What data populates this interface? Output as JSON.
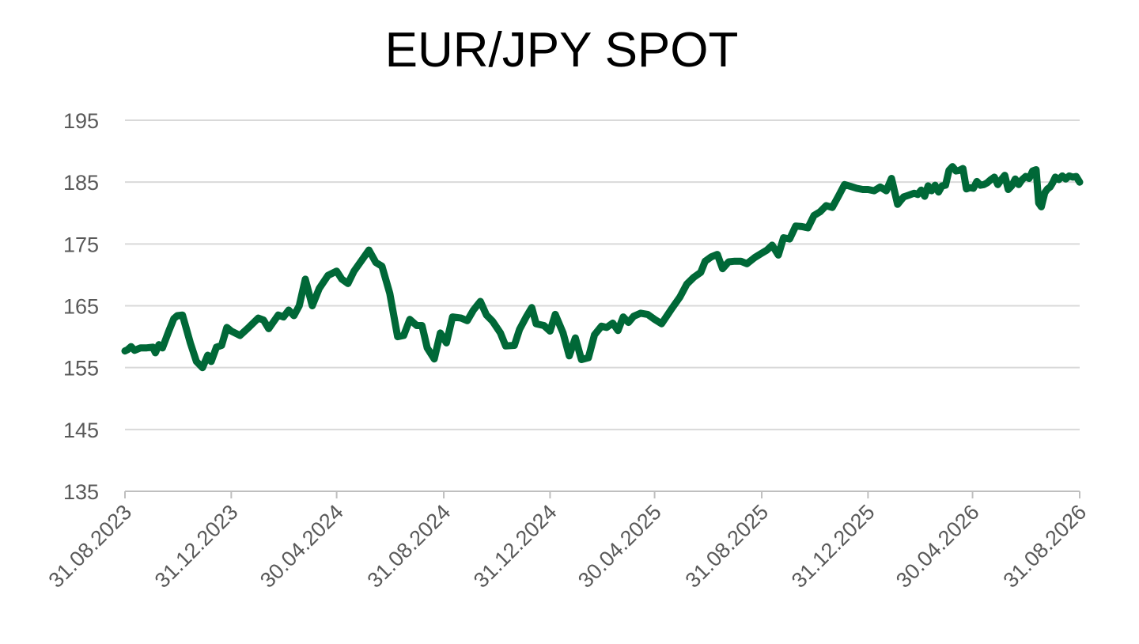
{
  "chart_data": {
    "type": "line",
    "title": "EUR/JPY SPOT",
    "xlabel": "",
    "ylabel": "",
    "ylim": [
      135,
      195
    ],
    "yticks": [
      "135",
      "145",
      "155",
      "165",
      "175",
      "185",
      "195"
    ],
    "xticks": [
      "31.08.2023",
      "31.12.2023",
      "30.04.2024",
      "31.08.2024",
      "31.12.2024",
      "30.04.2025",
      "31.08.2025",
      "31.12.2025",
      "30.04.2026",
      "31.08.2026"
    ],
    "grid": true,
    "legend": "none",
    "line_color": "#006837",
    "series": [
      {
        "points": [
          [
            "31.08.2023",
            157.7
          ],
          [
            "03.09.2023",
            157.9
          ],
          [
            "07.09.2023",
            158.4
          ],
          [
            "11.09.2023",
            157.8
          ],
          [
            "18.09.2023",
            158.2
          ],
          [
            "25.09.2023",
            158.2
          ],
          [
            "02.10.2023",
            158.3
          ],
          [
            "05.10.2023",
            157.4
          ],
          [
            "09.10.2023",
            158.7
          ],
          [
            "13.10.2023",
            158.2
          ],
          [
            "20.10.2023",
            160.8
          ],
          [
            "26.10.2023",
            162.9
          ],
          [
            "30.10.2023",
            163.4
          ],
          [
            "05.11.2023",
            163.5
          ],
          [
            "14.11.2023",
            159.0
          ],
          [
            "21.11.2023",
            156.0
          ],
          [
            "28.11.2023",
            155.0
          ],
          [
            "04.12.2023",
            157.0
          ],
          [
            "08.12.2023",
            156.0
          ],
          [
            "14.12.2023",
            158.3
          ],
          [
            "20.12.2023",
            158.6
          ],
          [
            "26.12.2023",
            161.5
          ],
          [
            "31.12.2023",
            160.9
          ],
          [
            "10.01.2024",
            160.2
          ],
          [
            "20.01.2024",
            161.5
          ],
          [
            "31.01.2024",
            163.0
          ],
          [
            "06.02.2024",
            162.7
          ],
          [
            "12.02.2024",
            161.3
          ],
          [
            "23.02.2024",
            163.5
          ],
          [
            "29.02.2024",
            163.2
          ],
          [
            "06.03.2024",
            164.3
          ],
          [
            "12.03.2024",
            163.4
          ],
          [
            "18.03.2024",
            165.0
          ],
          [
            "25.03.2024",
            169.3
          ],
          [
            "02.04.2024",
            165.0
          ],
          [
            "10.04.2024",
            167.8
          ],
          [
            "20.04.2024",
            169.9
          ],
          [
            "30.04.2024",
            170.6
          ],
          [
            "06.05.2024",
            169.3
          ],
          [
            "13.05.2024",
            168.6
          ],
          [
            "20.05.2024",
            170.6
          ],
          [
            "31.05.2024",
            172.8
          ],
          [
            "06.06.2024",
            174.0
          ],
          [
            "14.06.2024",
            172.0
          ],
          [
            "21.06.2024",
            171.4
          ],
          [
            "30.06.2024",
            167.0
          ],
          [
            "09.07.2024",
            160.0
          ],
          [
            "16.07.2024",
            160.2
          ],
          [
            "23.07.2024",
            162.8
          ],
          [
            "31.07.2024",
            161.8
          ],
          [
            "06.08.2024",
            161.8
          ],
          [
            "12.08.2024",
            158.2
          ],
          [
            "20.08.2024",
            156.4
          ],
          [
            "27.08.2024",
            160.6
          ],
          [
            "03.09.2024",
            159.0
          ],
          [
            "10.09.2024",
            163.2
          ],
          [
            "20.09.2024",
            163.0
          ],
          [
            "27.09.2024",
            162.6
          ],
          [
            "04.10.2024",
            164.3
          ],
          [
            "12.10.2024",
            165.7
          ],
          [
            "19.10.2024",
            163.5
          ],
          [
            "26.10.2024",
            162.5
          ],
          [
            "04.11.2024",
            160.6
          ],
          [
            "10.11.2024",
            158.5
          ],
          [
            "20.11.2024",
            158.6
          ],
          [
            "26.11.2024",
            161.2
          ],
          [
            "04.12.2024",
            163.3
          ],
          [
            "10.12.2024",
            164.7
          ],
          [
            "15.12.2024",
            162.1
          ],
          [
            "24.12.2024",
            161.8
          ],
          [
            "31.12.2024",
            160.9
          ],
          [
            "06.01.2025",
            163.6
          ],
          [
            "15.01.2025",
            160.6
          ],
          [
            "22.01.2025",
            156.9
          ],
          [
            "29.01.2025",
            159.8
          ],
          [
            "05.02.2025",
            156.3
          ],
          [
            "13.02.2025",
            156.6
          ],
          [
            "20.02.2025",
            160.3
          ],
          [
            "28.02.2025",
            161.7
          ],
          [
            "06.03.2025",
            161.5
          ],
          [
            "13.03.2025",
            162.2
          ],
          [
            "19.03.2025",
            161.0
          ],
          [
            "25.03.2025",
            163.2
          ],
          [
            "31.03.2025",
            162.3
          ],
          [
            "06.04.2025",
            163.3
          ],
          [
            "14.04.2025",
            163.8
          ],
          [
            "22.04.2025",
            163.6
          ],
          [
            "30.04.2025",
            162.8
          ],
          [
            "08.05.2025",
            162.1
          ],
          [
            "19.05.2025",
            164.4
          ],
          [
            "29.05.2025",
            166.4
          ],
          [
            "06.06.2025",
            168.5
          ],
          [
            "14.06.2025",
            169.6
          ],
          [
            "22.06.2025",
            170.4
          ],
          [
            "27.06.2025",
            172.2
          ],
          [
            "04.07.2025",
            172.9
          ],
          [
            "11.07.2025",
            173.3
          ],
          [
            "17.07.2025",
            171.0
          ],
          [
            "24.07.2025",
            172.1
          ],
          [
            "31.07.2025",
            172.2
          ],
          [
            "07.08.2025",
            172.2
          ],
          [
            "14.08.2025",
            171.8
          ],
          [
            "23.08.2025",
            172.8
          ],
          [
            "31.08.2025",
            173.5
          ],
          [
            "06.09.2025",
            174.0
          ],
          [
            "12.09.2025",
            174.8
          ],
          [
            "19.09.2025",
            173.2
          ],
          [
            "25.09.2025",
            176.0
          ],
          [
            "02.10.2025",
            175.8
          ],
          [
            "09.10.2025",
            177.9
          ],
          [
            "16.10.2025",
            177.8
          ],
          [
            "23.10.2025",
            177.6
          ],
          [
            "30.10.2025",
            179.6
          ],
          [
            "06.11.2025",
            180.2
          ],
          [
            "13.11.2025",
            181.2
          ],
          [
            "20.11.2025",
            180.9
          ],
          [
            "27.11.2025",
            182.7
          ],
          [
            "04.12.2025",
            184.6
          ],
          [
            "11.12.2025",
            184.3
          ],
          [
            "18.12.2025",
            184.0
          ],
          [
            "25.12.2025",
            183.8
          ],
          [
            "31.12.2025",
            183.8
          ],
          [
            "07.01.2026",
            183.6
          ],
          [
            "14.01.2026",
            184.2
          ],
          [
            "21.01.2026",
            183.6
          ],
          [
            "27.01.2026",
            185.6
          ],
          [
            "03.02.2026",
            181.4
          ],
          [
            "10.02.2026",
            182.6
          ],
          [
            "16.02.2026",
            182.9
          ],
          [
            "22.02.2026",
            183.2
          ],
          [
            "26.02.2026",
            183.0
          ],
          [
            "02.03.2026",
            183.7
          ],
          [
            "06.03.2026",
            182.7
          ],
          [
            "10.03.2026",
            184.4
          ],
          [
            "14.03.2026",
            183.6
          ],
          [
            "18.03.2026",
            184.5
          ],
          [
            "22.03.2026",
            183.4
          ],
          [
            "26.03.2026",
            184.4
          ],
          [
            "30.03.2026",
            184.5
          ],
          [
            "03.04.2026",
            186.9
          ],
          [
            "07.04.2026",
            187.5
          ],
          [
            "11.04.2026",
            186.8
          ],
          [
            "15.04.2026",
            186.9
          ],
          [
            "19.04.2026",
            187.2
          ],
          [
            "23.04.2026",
            183.9
          ],
          [
            "27.04.2026",
            184.1
          ],
          [
            "01.05.2026",
            184.0
          ],
          [
            "05.05.2026",
            185.1
          ],
          [
            "09.05.2026",
            184.5
          ],
          [
            "13.05.2026",
            184.6
          ],
          [
            "17.05.2026",
            184.9
          ],
          [
            "21.05.2026",
            185.4
          ],
          [
            "25.05.2026",
            185.8
          ],
          [
            "29.05.2026",
            184.6
          ],
          [
            "02.06.2026",
            185.4
          ],
          [
            "06.06.2026",
            186.1
          ],
          [
            "10.06.2026",
            183.8
          ],
          [
            "14.06.2026",
            184.4
          ],
          [
            "18.06.2026",
            185.5
          ],
          [
            "22.06.2026",
            184.6
          ],
          [
            "26.06.2026",
            185.4
          ],
          [
            "30.06.2026",
            185.9
          ],
          [
            "04.07.2026",
            185.6
          ],
          [
            "08.07.2026",
            186.8
          ],
          [
            "12.07.2026",
            187.0
          ],
          [
            "15.07.2026",
            181.6
          ],
          [
            "18.07.2026",
            181.0
          ],
          [
            "22.07.2026",
            183.3
          ],
          [
            "25.07.2026",
            183.9
          ],
          [
            "28.07.2026",
            184.2
          ],
          [
            "31.07.2026",
            184.9
          ],
          [
            "03.08.2026",
            185.8
          ],
          [
            "07.08.2026",
            185.4
          ],
          [
            "11.08.2026",
            186.0
          ],
          [
            "15.08.2026",
            185.5
          ],
          [
            "19.08.2026",
            186.0
          ],
          [
            "23.08.2026",
            185.8
          ],
          [
            "27.08.2026",
            185.9
          ],
          [
            "31.08.2026",
            185.0
          ]
        ]
      }
    ]
  }
}
